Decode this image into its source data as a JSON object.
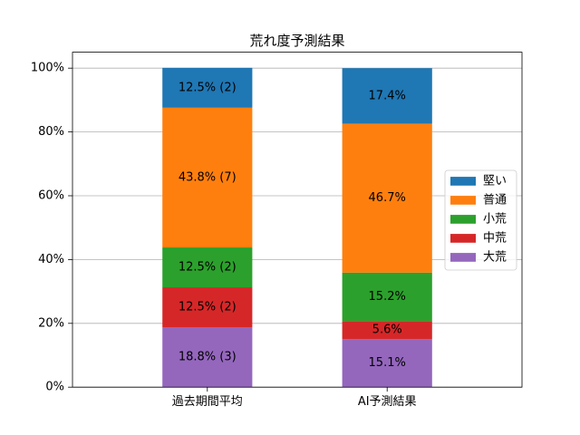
{
  "chart_data": {
    "type": "bar",
    "stacked": true,
    "title": "荒れ度予測結果",
    "categories": [
      "過去期間平均",
      "AI予測結果"
    ],
    "ylim": [
      0,
      105
    ],
    "yticks": [
      0,
      20,
      40,
      60,
      80,
      100
    ],
    "ytick_labels": [
      "0%",
      "20%",
      "40%",
      "60%",
      "80%",
      "100%"
    ],
    "grid": "y",
    "legend": "center right",
    "series": [
      {
        "name": "大荒",
        "color": "#9467bd",
        "values": [
          18.8,
          15.1
        ],
        "labels": [
          "18.8% (3)",
          "15.1%"
        ]
      },
      {
        "name": "中荒",
        "color": "#d62728",
        "values": [
          12.5,
          5.6
        ],
        "labels": [
          "12.5% (2)",
          "5.6%"
        ]
      },
      {
        "name": "小荒",
        "color": "#2ca02c",
        "values": [
          12.5,
          15.2
        ],
        "labels": [
          "12.5% (2)",
          "15.2%"
        ]
      },
      {
        "name": "普通",
        "color": "#ff7f0e",
        "values": [
          43.8,
          46.7
        ],
        "labels": [
          "43.8% (7)",
          "46.7%"
        ]
      },
      {
        "name": "堅い",
        "color": "#1f77b4",
        "values": [
          12.5,
          17.4
        ],
        "labels": [
          "12.5% (2)",
          "17.4%"
        ]
      }
    ]
  }
}
